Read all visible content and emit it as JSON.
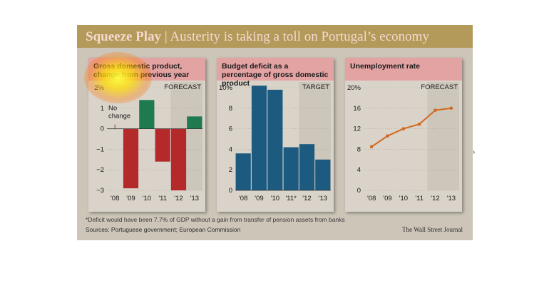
{
  "headline": {
    "bold": "Squeeze Play",
    "sep": " | ",
    "rest": "Austerity is taking a toll on Portugal’s economy"
  },
  "chart_data": [
    {
      "type": "bar",
      "title": "Gross domestic product, change from previous year",
      "categories": [
        "'08",
        "'09",
        "'10",
        "'11",
        "'12",
        "'13"
      ],
      "values": [
        0,
        -2.9,
        1.4,
        -1.6,
        -3.0,
        0.6
      ],
      "ylim": [
        -3,
        2
      ],
      "yticks": [
        "2%",
        "1",
        "0",
        "−1",
        "−2",
        "−3"
      ],
      "annotation": "FORECAST",
      "note_label": "No change",
      "colors": {
        "positive": "#1f7a52",
        "negative": "#b42a2a"
      }
    },
    {
      "type": "bar",
      "title": "Budget deficit as a percentage of gross domestic product",
      "categories": [
        "'08",
        "'09",
        "'10",
        "'11*",
        "'12",
        "'13"
      ],
      "values": [
        3.6,
        10.2,
        9.8,
        4.2,
        4.5,
        3.0
      ],
      "ylim": [
        0,
        10
      ],
      "yticks": [
        "10%",
        "8",
        "6",
        "4",
        "2",
        "0"
      ],
      "annotation": "TARGET",
      "colors": {
        "bar": "#1c5a80"
      }
    },
    {
      "type": "line",
      "title": "Unemployment rate",
      "categories": [
        "'08",
        "'09",
        "'10",
        "'11",
        "'12",
        "'13"
      ],
      "values": [
        8.5,
        10.6,
        12.0,
        12.9,
        15.6,
        16.0
      ],
      "ylim": [
        0,
        20
      ],
      "yticks": [
        "20%",
        "16",
        "12",
        "8",
        "4",
        "0"
      ],
      "annotation": "FORECAST",
      "colors": {
        "line": "#d2691e"
      }
    }
  ],
  "footnote": "*Deficit would have been 7.7% of GDP without a gain from transfer of pension assets from banks",
  "sources": "Sources: Portuguese government; European Commission",
  "credit": "The Wall Street Journal"
}
